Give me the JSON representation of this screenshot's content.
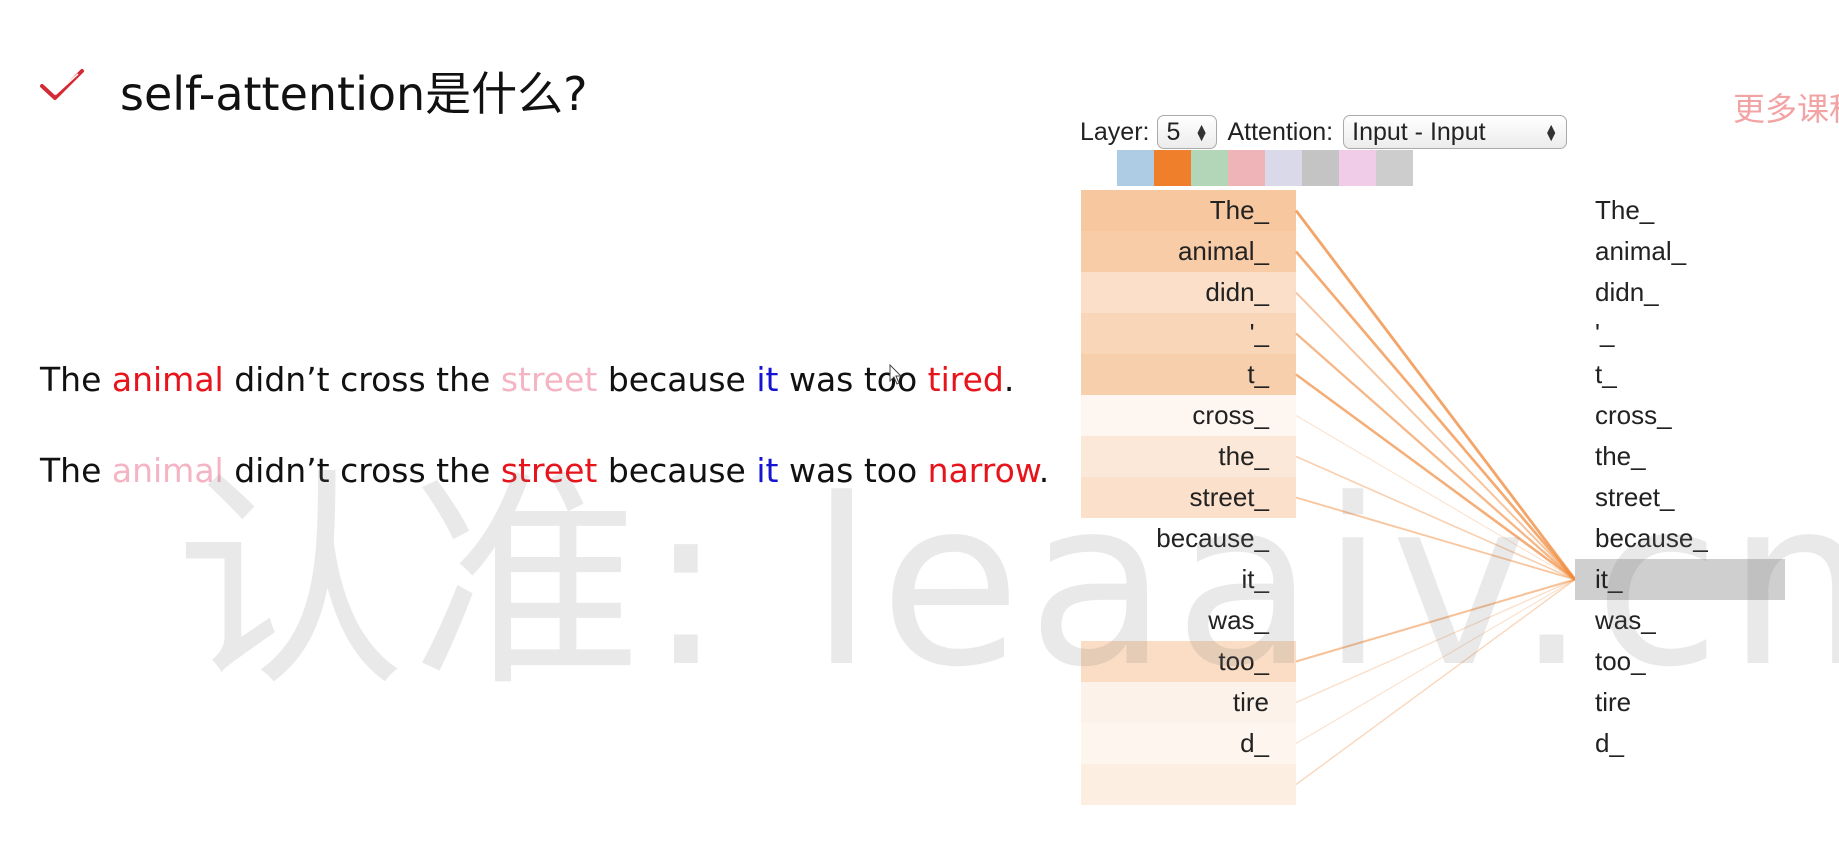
{
  "slide": {
    "title": "self-attention是什么?",
    "corner_text": "更多课程",
    "watermark": "认准: leaaiv.cn"
  },
  "sentences": [
    {
      "words": [
        {
          "text": "The ",
          "style": "normal"
        },
        {
          "text": "animal",
          "style": "red"
        },
        {
          "text": " didn’t cross the ",
          "style": "normal"
        },
        {
          "text": "street",
          "style": "faded"
        },
        {
          "text": " because ",
          "style": "normal"
        },
        {
          "text": "it",
          "style": "blue"
        },
        {
          "text": " was too ",
          "style": "normal"
        },
        {
          "text": "tired",
          "style": "red"
        },
        {
          "text": ".",
          "style": "normal"
        }
      ]
    },
    {
      "words": [
        {
          "text": "The ",
          "style": "normal"
        },
        {
          "text": "animal",
          "style": "faded"
        },
        {
          "text": " didn’t cross the ",
          "style": "normal"
        },
        {
          "text": "street",
          "style": "red"
        },
        {
          "text": " because ",
          "style": "normal"
        },
        {
          "text": "it",
          "style": "blue"
        },
        {
          "text": " was too ",
          "style": "normal"
        },
        {
          "text": "narrow",
          "style": "red"
        },
        {
          "text": ".",
          "style": "normal"
        }
      ]
    }
  ],
  "visualizer": {
    "layer_label": "Layer:",
    "layer_value": "5",
    "attention_label": "Attention:",
    "attention_value": "Input - Input",
    "head_colors": [
      "#aecde4",
      "#f07f2c",
      "#b3d6b8",
      "#efb4b8",
      "#d9d9ea",
      "#c4c4c4",
      "#f0cce8",
      "#cdcdcd"
    ],
    "active_head": 1,
    "selected_token_index": 9,
    "tokens": [
      "The_",
      "animal_",
      "didn_",
      "'_",
      "t_",
      "cross_",
      "the_",
      "street_",
      "because_",
      "it_",
      "was_",
      "too_",
      "tire",
      "d_",
      ""
    ],
    "attention_weights": [
      0.78,
      0.72,
      0.45,
      0.58,
      0.68,
      0.12,
      0.32,
      0.42,
      0.0,
      0.0,
      0.0,
      0.48,
      0.18,
      0.14,
      0.24
    ]
  }
}
